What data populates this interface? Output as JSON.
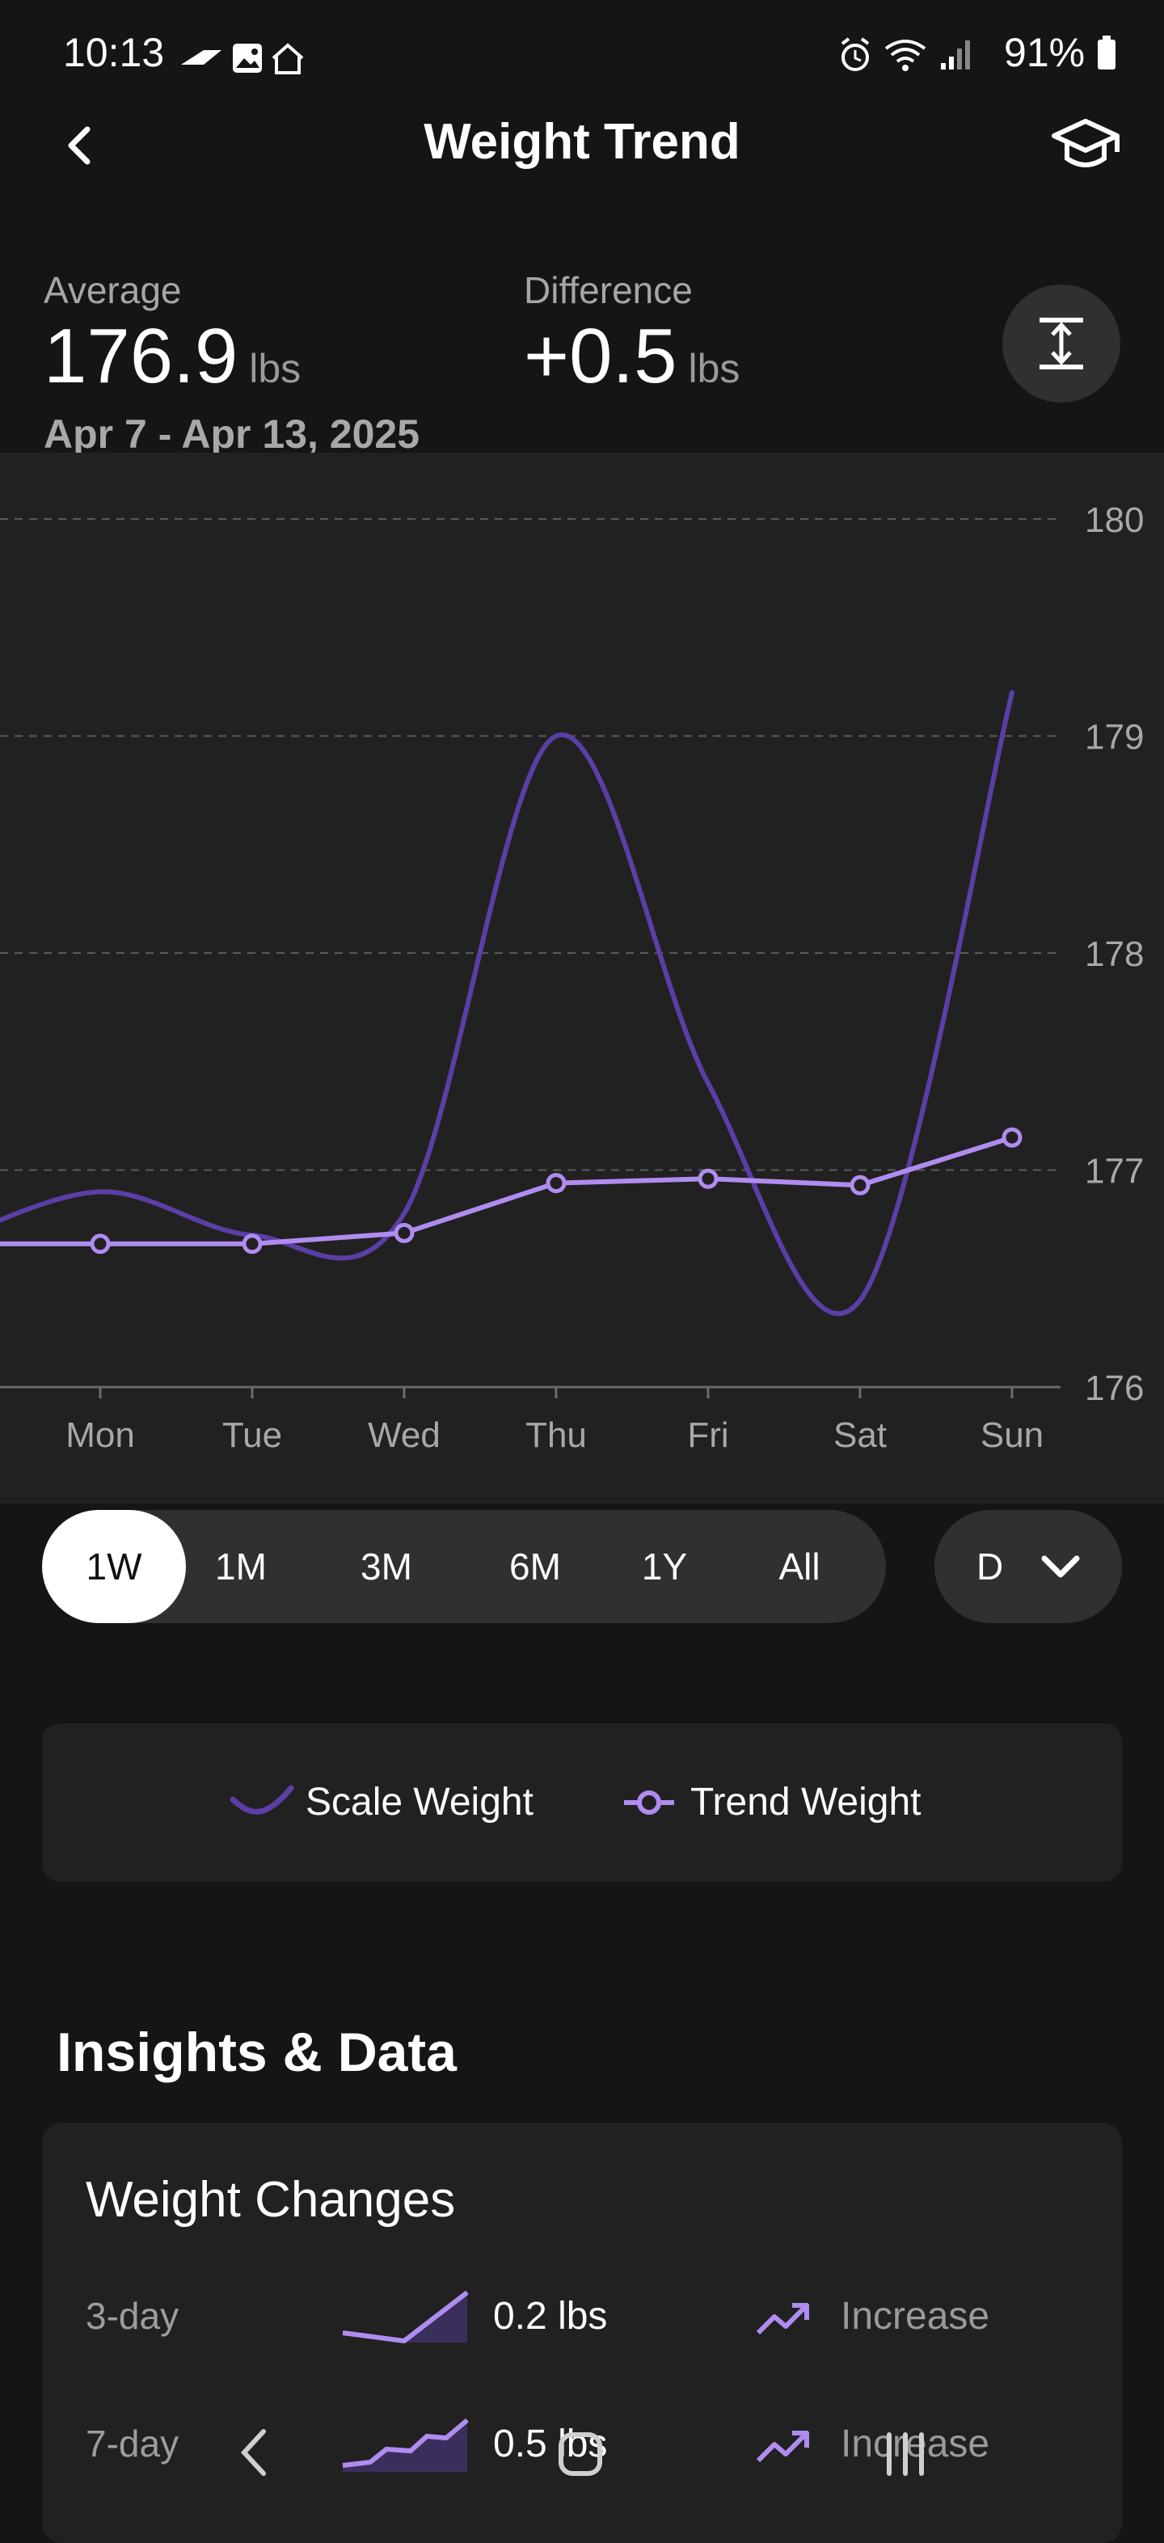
{
  "status_bar": {
    "time": "10:13",
    "battery": "91%",
    "icons": [
      "f1-icon",
      "image-icon",
      "home-icon",
      "alarm-icon",
      "wifi-icon",
      "signal-icon",
      "battery-icon"
    ]
  },
  "header": {
    "title": "Weight Trend",
    "back_icon": "chevron-left-icon",
    "learn_icon": "graduation-cap-icon"
  },
  "summary": {
    "average_label": "Average",
    "average_value": "176.9",
    "average_unit": "lbs",
    "difference_label": "Difference",
    "difference_value": "+0.5",
    "difference_unit": "lbs",
    "date_range": "Apr 7 - Apr 13, 2025",
    "expand_icon": "expand-vertical-icon"
  },
  "chart_data": {
    "type": "line",
    "categories": [
      "Mon",
      "Tue",
      "Wed",
      "Thu",
      "Fri",
      "Sat",
      "Sun"
    ],
    "y_ticks": [
      "180",
      "179",
      "178",
      "177",
      "176"
    ],
    "ylim": [
      176,
      180
    ],
    "grid": true,
    "series": [
      {
        "name": "Scale Weight",
        "values": [
          176.9,
          176.7,
          176.8,
          179.0,
          177.4,
          176.4,
          179.2
        ],
        "color": "#5b3ea6"
      },
      {
        "name": "Trend Weight",
        "values": [
          176.66,
          176.66,
          176.71,
          176.94,
          176.96,
          176.93,
          177.15
        ],
        "color": "#b08cf0"
      }
    ]
  },
  "controls": {
    "ranges": [
      "1W",
      "1M",
      "3M",
      "6M",
      "1Y",
      "All"
    ],
    "active_range": "1W",
    "dropdown_value": "D",
    "dropdown_icon": "chevron-down-icon"
  },
  "legend": {
    "scale_label": "Scale Weight",
    "trend_label": "Trend Weight"
  },
  "insights": {
    "heading": "Insights & Data",
    "card_title": "Weight Changes",
    "rows": [
      {
        "label": "3-day",
        "value": "0.2 lbs",
        "status": "Increase"
      },
      {
        "label": "7-day",
        "value": "0.5 lbs",
        "status": "Increase"
      }
    ]
  },
  "nav_bar": {
    "icons": [
      "back-nav-icon",
      "home-nav-icon",
      "recents-nav-icon"
    ]
  },
  "colors": {
    "background": "#151515",
    "card": "#212121",
    "accent": "#b08cf0",
    "accent_dark": "#5b3ea6"
  }
}
